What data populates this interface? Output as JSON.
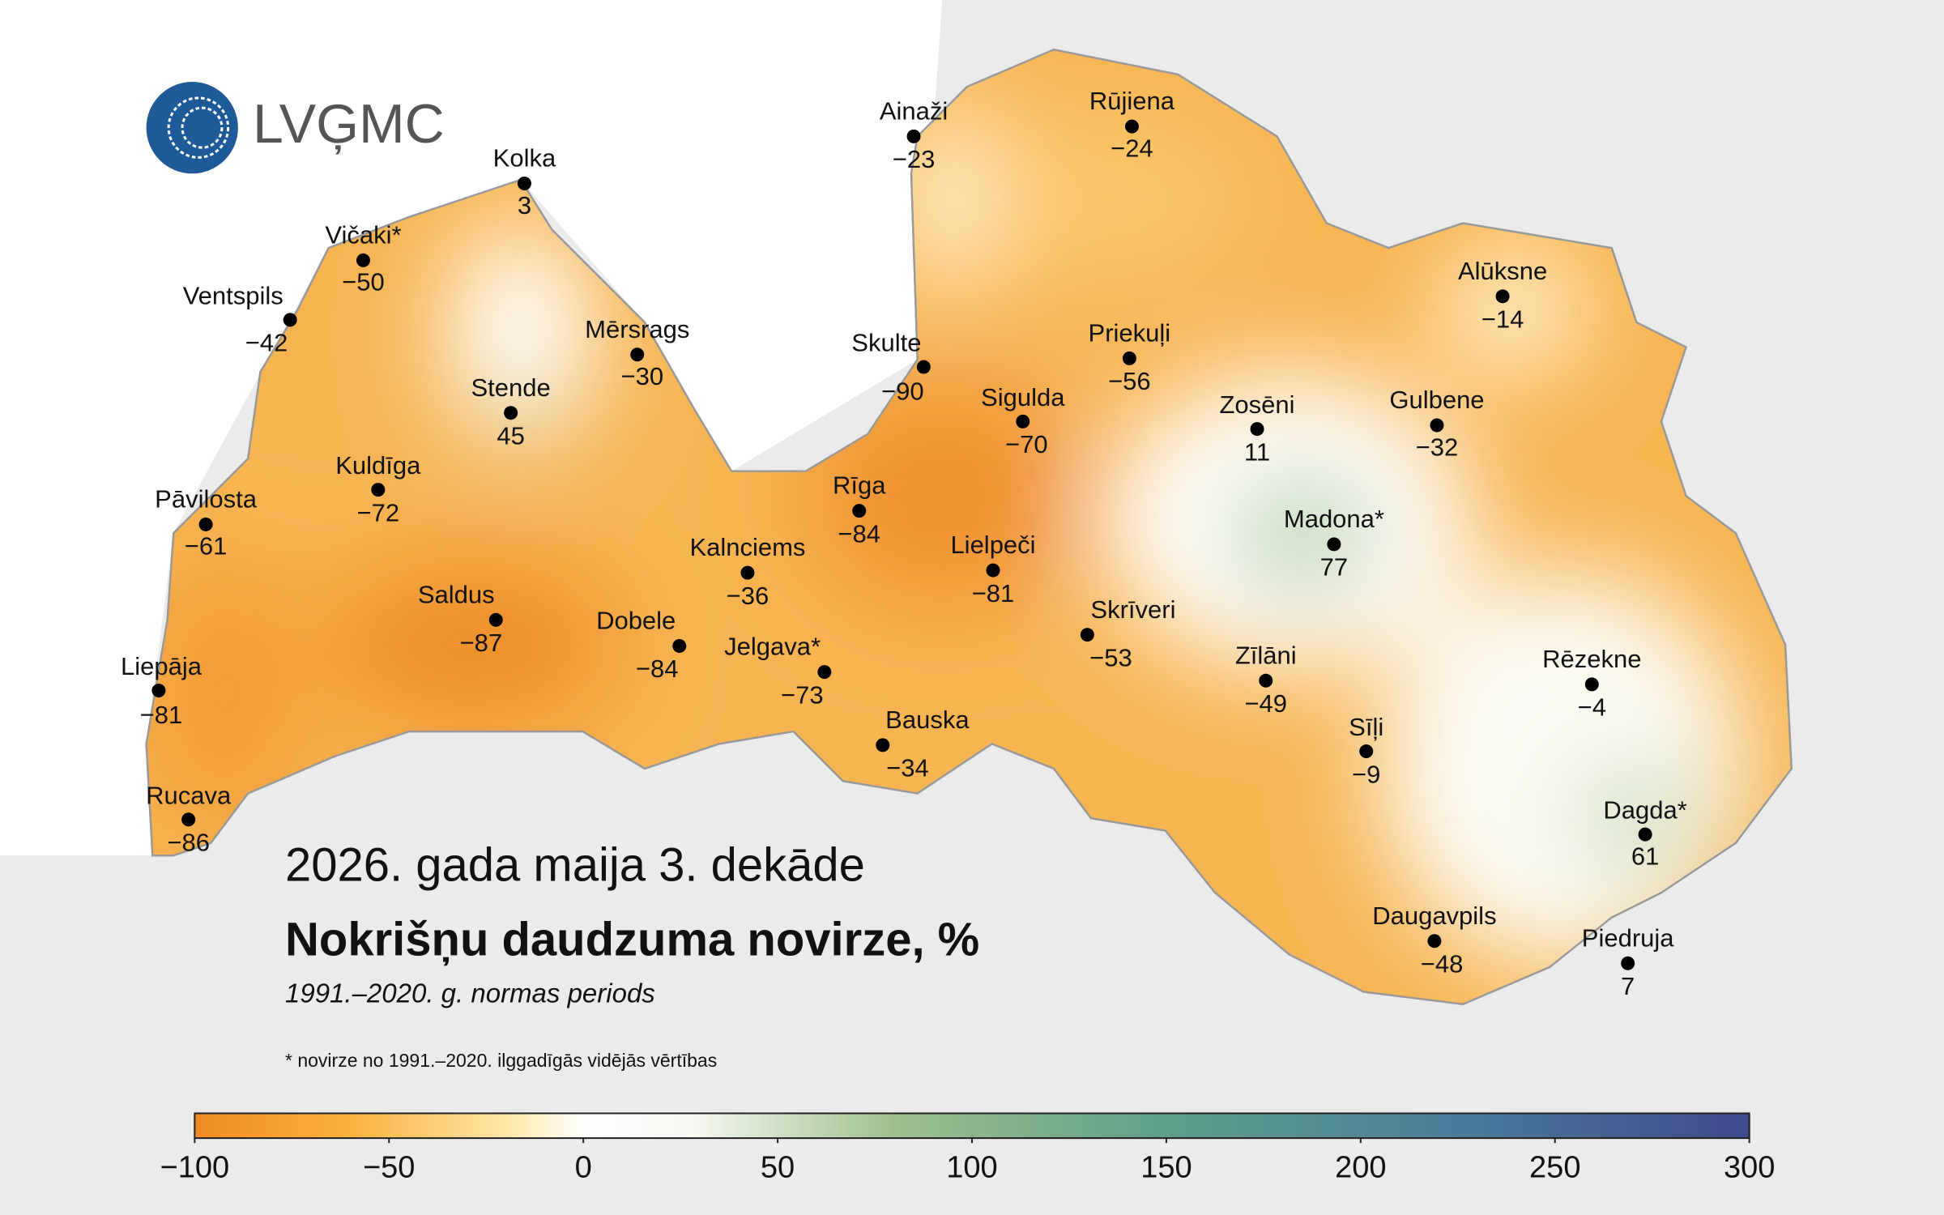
{
  "logo": {
    "text": "LVĢMC"
  },
  "map": {
    "title": "2026. gada maija 3. dekāde",
    "heading": "Nokrišņu daudzuma novirze, %",
    "period": "1991.–2020. g. normas periods",
    "footnote": "* novirze no 1991.–2020. ilggadīgās vidējās vērtības",
    "stations": {
      "names": [
        "Kolka",
        "Vičaki*",
        "Ventspils",
        "Mērsrags",
        "Stende",
        "Kuldīga",
        "Pāvilosta",
        "Saldus",
        "Liepāja",
        "Rucava",
        "Dobele",
        "Jelgava*",
        "Kalnciems",
        "Rīga",
        "Bauska",
        "Lielpeči",
        "Skrīveri",
        "Skulte",
        "Sigulda",
        "Ainaži",
        "Rūjiena",
        "Priekuļi",
        "Zosēni",
        "Madona*",
        "Gulbene",
        "Alūksne",
        "Zīlāni",
        "Sīļi",
        "Rēzekne",
        "Dagda*",
        "Daugavpils",
        "Piedruja"
      ],
      "values": [
        3,
        -50,
        -42,
        -30,
        45,
        -72,
        -61,
        -87,
        -81,
        -86,
        -84,
        -73,
        -36,
        -84,
        -34,
        -81,
        -53,
        -90,
        -70,
        -23,
        -24,
        -56,
        11,
        77,
        -32,
        -14,
        -49,
        -9,
        -4,
        61,
        -48,
        7
      ],
      "value_labels": [
        "3",
        "−50",
        "−42",
        "−30",
        "45",
        "−72",
        "−61",
        "−87",
        "−81",
        "−86",
        "−84",
        "−73",
        "−36",
        "−84",
        "−34",
        "−81",
        "−53",
        "−90",
        "−70",
        "−23",
        "−24",
        "−56",
        "11",
        "77",
        "−32",
        "−14",
        "−49",
        "−9",
        "−4",
        "61",
        "−48",
        "7"
      ]
    },
    "colorbar": {
      "clim": [
        -100,
        300
      ],
      "ticks": [
        {
          "value": -100,
          "label": "−100"
        },
        {
          "value": -50,
          "label": "−50"
        },
        0,
        50,
        100,
        150,
        200,
        250,
        300
      ]
    }
  }
}
